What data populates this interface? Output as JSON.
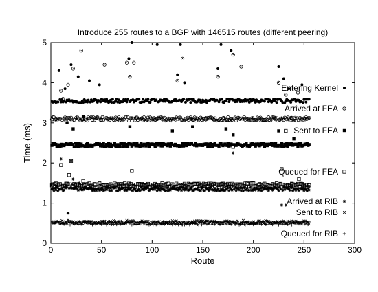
{
  "chart_data": {
    "type": "scatter",
    "title": "Introduce 255 routes to a BGP with 146515 routes (different peering)",
    "xlabel": "Route",
    "ylabel": "Time (ms)",
    "xlim": [
      0,
      300
    ],
    "ylim": [
      0,
      5
    ],
    "xticks": [
      0,
      50,
      100,
      150,
      200,
      250,
      300
    ],
    "yticks": [
      0,
      1,
      2,
      3,
      4,
      5
    ],
    "grid": false,
    "legend_position": "right (stacked labels, each beside its marker)",
    "x_range": [
      1,
      255
    ],
    "series": [
      {
        "name": "Entering Kernel",
        "marker": "filled-circle",
        "base": 3.55,
        "outliers": [
          [
            8,
            4.3
          ],
          [
            14,
            3.85
          ],
          [
            20,
            4.45
          ],
          [
            27,
            4.15
          ],
          [
            38,
            4.05
          ],
          [
            48,
            3.95
          ],
          [
            77,
            4.6
          ],
          [
            80,
            5.0
          ],
          [
            105,
            4.95
          ],
          [
            125,
            4.2
          ],
          [
            128,
            4.95
          ],
          [
            132,
            4.0
          ],
          [
            165,
            4.35
          ],
          [
            168,
            4.95
          ],
          [
            178,
            4.8
          ],
          [
            225,
            4.4
          ],
          [
            230,
            4.1
          ],
          [
            235,
            3.85
          ],
          [
            248,
            3.95
          ]
        ]
      },
      {
        "name": "Arrived at FEA",
        "marker": "circle-dot",
        "base": 3.1,
        "outliers": [
          [
            10,
            3.8
          ],
          [
            12,
            3.6
          ],
          [
            17,
            3.95
          ],
          [
            22,
            4.35
          ],
          [
            30,
            4.8
          ],
          [
            53,
            4.45
          ],
          [
            75,
            4.5
          ],
          [
            78,
            4.15
          ],
          [
            82,
            4.5
          ],
          [
            125,
            4.05
          ],
          [
            130,
            4.6
          ],
          [
            165,
            4.15
          ],
          [
            180,
            4.7
          ],
          [
            188,
            4.4
          ],
          [
            225,
            4.0
          ],
          [
            232,
            3.7
          ],
          [
            244,
            3.75
          ]
        ]
      },
      {
        "name": "Sent to FEA",
        "marker": "filled-square",
        "base": 2.45,
        "outliers": [
          [
            16,
            3.0
          ],
          [
            22,
            2.85
          ],
          [
            32,
            3.15
          ],
          [
            78,
            2.9
          ],
          [
            120,
            2.8
          ],
          [
            140,
            2.9
          ],
          [
            173,
            2.85
          ],
          [
            180,
            2.7
          ],
          [
            225,
            2.8
          ],
          [
            240,
            2.6
          ]
        ]
      },
      {
        "name": "Queued for FEA",
        "marker": "open-square",
        "base": 1.45,
        "outliers": [
          [
            10,
            1.95
          ],
          [
            18,
            1.7
          ],
          [
            20,
            2.05
          ],
          [
            32,
            1.55
          ],
          [
            80,
            1.8
          ],
          [
            180,
            2.4
          ],
          [
            228,
            1.85
          ],
          [
            232,
            2.8
          ],
          [
            245,
            1.6
          ]
        ]
      },
      {
        "name": "Arrived at RIB",
        "marker": "asterisk",
        "base": 1.35,
        "outliers": [
          [
            10,
            2.1
          ],
          [
            17,
            0.75
          ],
          [
            20,
            2.05
          ],
          [
            22,
            1.6
          ],
          [
            28,
            1.5
          ],
          [
            180,
            2.25
          ],
          [
            228,
            0.95
          ],
          [
            232,
            0.95
          ]
        ]
      },
      {
        "name": "Sent to RIB",
        "marker": "x-cross",
        "base": 0.52,
        "outliers": [
          [
            17,
            0.58
          ],
          [
            75,
            0.57
          ],
          [
            150,
            0.55
          ],
          [
            190,
            0.57
          ]
        ]
      },
      {
        "name": "Queued for RIB",
        "marker": "plus",
        "base": 0.5,
        "outliers": []
      }
    ]
  }
}
